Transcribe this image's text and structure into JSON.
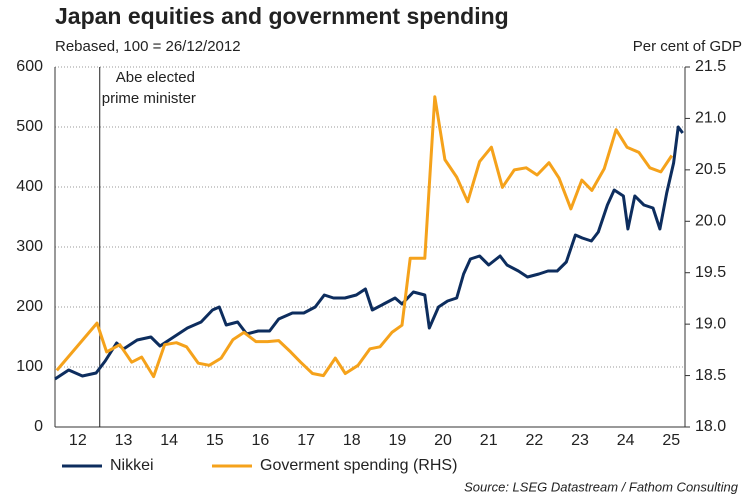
{
  "chart_data": {
    "type": "line",
    "title": "Japan equities and government spending",
    "subtitle": "Rebased, 100 = 26/12/2012",
    "y2_label": "Per cent of GDP",
    "source": "Source: LSEG Datastream / Fathom Consulting",
    "annotation": {
      "lines": [
        "Abe elected",
        "prime minister"
      ],
      "x": 2012.98
    },
    "xlim": [
      2012.0,
      2025.8
    ],
    "xticks": [
      {
        "value": 2012.5,
        "label": "12"
      },
      {
        "value": 2013.5,
        "label": "13"
      },
      {
        "value": 2014.5,
        "label": "14"
      },
      {
        "value": 2015.5,
        "label": "15"
      },
      {
        "value": 2016.5,
        "label": "16"
      },
      {
        "value": 2017.5,
        "label": "17"
      },
      {
        "value": 2018.5,
        "label": "18"
      },
      {
        "value": 2019.5,
        "label": "19"
      },
      {
        "value": 2020.5,
        "label": "20"
      },
      {
        "value": 2021.5,
        "label": "21"
      },
      {
        "value": 2022.5,
        "label": "22"
      },
      {
        "value": 2023.5,
        "label": "23"
      },
      {
        "value": 2024.5,
        "label": "24"
      },
      {
        "value": 2025.5,
        "label": "25"
      }
    ],
    "ylim": [
      0,
      600
    ],
    "yticks": [
      0,
      100,
      200,
      300,
      400,
      500,
      600
    ],
    "y2lim": [
      18,
      21.5
    ],
    "y2ticks": [
      {
        "value": 18,
        "label": "18.0"
      },
      18.5,
      {
        "value": 19,
        "label": "19.0"
      },
      19.5,
      {
        "value": 20,
        "label": "20.0"
      },
      20.5,
      {
        "value": 21,
        "label": "21.0"
      },
      21.5
    ],
    "grid": true,
    "series": [
      {
        "name": "Nikkei",
        "color": "#0d2d5e",
        "x": [
          2012.0,
          2012.3,
          2012.6,
          2012.9,
          2013.1,
          2013.35,
          2013.5,
          2013.8,
          2014.1,
          2014.3,
          2014.6,
          2014.9,
          2015.2,
          2015.45,
          2015.6,
          2015.75,
          2016.0,
          2016.2,
          2016.45,
          2016.7,
          2016.9,
          2017.2,
          2017.45,
          2017.7,
          2017.9,
          2018.1,
          2018.35,
          2018.6,
          2018.8,
          2018.95,
          2019.2,
          2019.45,
          2019.6,
          2019.85,
          2020.1,
          2020.2,
          2020.4,
          2020.6,
          2020.8,
          2020.95,
          2021.1,
          2021.3,
          2021.5,
          2021.75,
          2021.9,
          2022.15,
          2022.35,
          2022.6,
          2022.8,
          2023.0,
          2023.2,
          2023.4,
          2023.55,
          2023.75,
          2023.9,
          2024.1,
          2024.25,
          2024.45,
          2024.55,
          2024.7,
          2024.9,
          2025.1,
          2025.25,
          2025.4,
          2025.55,
          2025.65,
          2025.75
        ],
        "values": [
          80,
          95,
          85,
          90,
          110,
          140,
          130,
          145,
          150,
          135,
          150,
          165,
          175,
          195,
          200,
          170,
          175,
          155,
          160,
          160,
          180,
          190,
          190,
          200,
          220,
          215,
          215,
          220,
          230,
          195,
          205,
          215,
          205,
          225,
          220,
          165,
          200,
          210,
          215,
          255,
          280,
          285,
          270,
          285,
          270,
          260,
          250,
          255,
          260,
          260,
          275,
          320,
          315,
          310,
          325,
          370,
          395,
          385,
          330,
          385,
          370,
          365,
          330,
          390,
          440,
          500,
          490
        ]
      },
      {
        "name": "Goverment spending (RHS)",
        "color": "#f5a21b",
        "axis": "y2",
        "x": [
          2012.04,
          2012.92,
          2013.13,
          2013.42,
          2013.68,
          2013.9,
          2014.16,
          2014.4,
          2014.66,
          2014.88,
          2015.14,
          2015.38,
          2015.64,
          2015.9,
          2016.14,
          2016.4,
          2016.66,
          2016.9,
          2017.16,
          2017.38,
          2017.64,
          2017.88,
          2018.14,
          2018.36,
          2018.64,
          2018.9,
          2019.12,
          2019.38,
          2019.6,
          2019.78,
          2020.1,
          2020.32,
          2020.54,
          2020.8,
          2021.04,
          2021.3,
          2021.56,
          2021.8,
          2022.06,
          2022.32,
          2022.56,
          2022.82,
          2023.04,
          2023.3,
          2023.54,
          2023.76,
          2024.03,
          2024.29,
          2024.53,
          2024.79,
          2025.03,
          2025.27,
          2025.51
        ],
        "values": [
          18.55,
          19.01,
          18.73,
          18.8,
          18.63,
          18.68,
          18.49,
          18.8,
          18.82,
          18.78,
          18.62,
          18.6,
          18.67,
          18.85,
          18.92,
          18.83,
          18.83,
          18.84,
          18.73,
          18.63,
          18.52,
          18.5,
          18.67,
          18.52,
          18.6,
          18.76,
          18.78,
          18.92,
          18.99,
          19.64,
          19.64,
          21.21,
          20.6,
          20.43,
          20.19,
          20.58,
          20.72,
          20.33,
          20.5,
          20.52,
          20.45,
          20.57,
          20.42,
          20.12,
          20.4,
          20.3,
          20.51,
          20.89,
          20.72,
          20.67,
          20.52,
          20.48,
          20.64
        ]
      }
    ]
  }
}
